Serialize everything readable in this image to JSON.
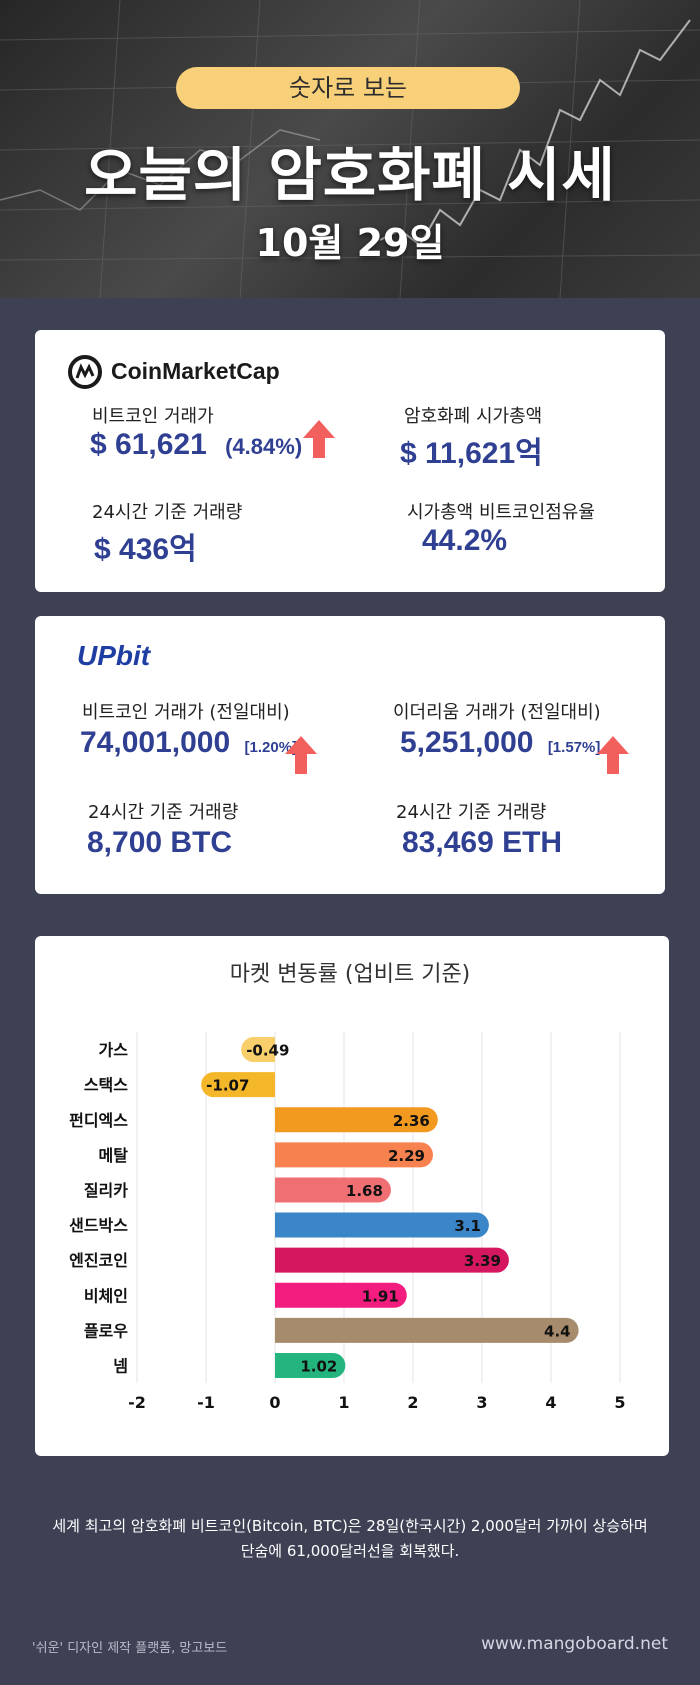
{
  "header": {
    "pill": "숫자로 보는",
    "title": "오늘의 암호화폐 시세",
    "date": "10월 29일"
  },
  "coinmarketcap": {
    "logo_text": "CoinMarketCap",
    "btc_price_label": "비트코인 거래가",
    "btc_price_value": "$ 61,621",
    "btc_price_change": "(4.84%)",
    "market_cap_label": "암호화폐 시가총액",
    "market_cap_value": "$ 11,621억",
    "volume_label": "24시간 기준 거래량",
    "volume_value": "$ 436억",
    "dominance_label": "시가총액 비트코인점유율",
    "dominance_value": "44.2%"
  },
  "upbit": {
    "logo_text": "UPbit",
    "btc_label": "비트코인 거래가 (전일대비)",
    "btc_value": "74,001,000",
    "btc_change": "[1.20%]",
    "eth_label": "이더리움 거래가 (전일대비)",
    "eth_value": "5,251,000",
    "eth_change": "[1.57%]",
    "btc_volume_label": "24시간 기준 거래량",
    "btc_volume_value": "8,700 BTC",
    "eth_volume_label": "24시간 기준 거래량",
    "eth_volume_value": "83,469 ETH"
  },
  "chart_data": {
    "type": "bar",
    "orientation": "horizontal",
    "title": "마켓 변동률 (업비트 기준)",
    "categories": [
      "가스",
      "스택스",
      "펀디엑스",
      "메탈",
      "질리카",
      "샌드박스",
      "엔진코인",
      "비체인",
      "플로우",
      "넴"
    ],
    "values": [
      -0.49,
      -1.07,
      2.36,
      2.29,
      1.68,
      3.1,
      3.39,
      1.91,
      4.4,
      1.02
    ],
    "value_labels": [
      "-0.49",
      "-1.07",
      "2.36",
      "2.29",
      "1.68",
      "3.1",
      "3.39",
      "1.91",
      "4.4",
      "1.02"
    ],
    "colors": [
      "#f9cf6b",
      "#f5b72a",
      "#f29a1f",
      "#f7824f",
      "#ef6f72",
      "#3a86c8",
      "#d4175f",
      "#f21d7e",
      "#a68b6c",
      "#23b57d"
    ],
    "xlim": [
      -2,
      5
    ],
    "xticks": [
      "-2",
      "-1",
      "0",
      "1",
      "2",
      "3",
      "4",
      "5"
    ],
    "grid": true
  },
  "footer": {
    "description_line1": "세계 최고의 암호화폐 비트코인(Bitcoin, BTC)은 28일(한국시간) 2,000달러 가까이 상승하며",
    "description_line2": "단숨에 61,000달러선을 회복했다.",
    "credit": "'쉬운' 디자인 제작 플랫폼, 망고보드",
    "site": "www.mangoboard.net"
  },
  "colors": {
    "background": "#3d4153",
    "accent_blue": "#2f3f92",
    "up_arrow": "#f2605e",
    "pill": "#f7d079"
  }
}
